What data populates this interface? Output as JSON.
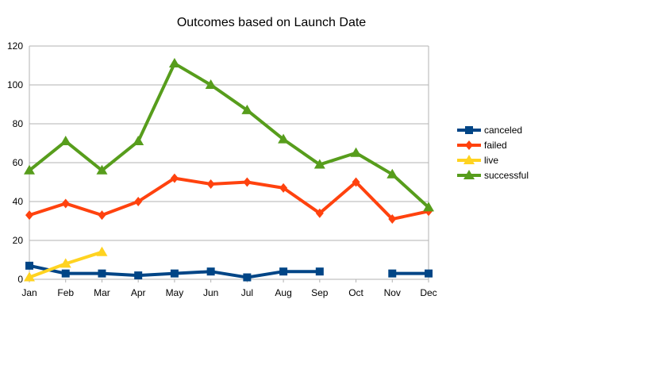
{
  "chart_data": {
    "type": "line",
    "title": "Outcomes based on Launch Date",
    "xlabel": "",
    "ylabel": "",
    "categories": [
      "Jan",
      "Feb",
      "Mar",
      "Apr",
      "May",
      "Jun",
      "Jul",
      "Aug",
      "Sep",
      "Oct",
      "Nov",
      "Dec"
    ],
    "ylim": [
      0,
      120
    ],
    "yticks": [
      0,
      20,
      40,
      60,
      80,
      100,
      120
    ],
    "grid": true,
    "legend_position": "right",
    "series": [
      {
        "name": "canceled",
        "color": "#004586",
        "marker": "square",
        "values": [
          7,
          3,
          3,
          2,
          3,
          4,
          1,
          4,
          4,
          null,
          3,
          3
        ]
      },
      {
        "name": "failed",
        "color": "#ff420e",
        "marker": "diamond",
        "values": [
          33,
          39,
          33,
          40,
          52,
          49,
          50,
          47,
          34,
          50,
          31,
          35
        ]
      },
      {
        "name": "live",
        "color": "#ffd320",
        "marker": "triangle",
        "values": [
          1,
          8,
          14,
          null,
          null,
          null,
          null,
          null,
          null,
          null,
          null,
          null
        ]
      },
      {
        "name": "successful",
        "color": "#579d1c",
        "marker": "triangle",
        "values": [
          56,
          71,
          56,
          71,
          111,
          100,
          87,
          72,
          59,
          65,
          54,
          37
        ]
      }
    ]
  }
}
